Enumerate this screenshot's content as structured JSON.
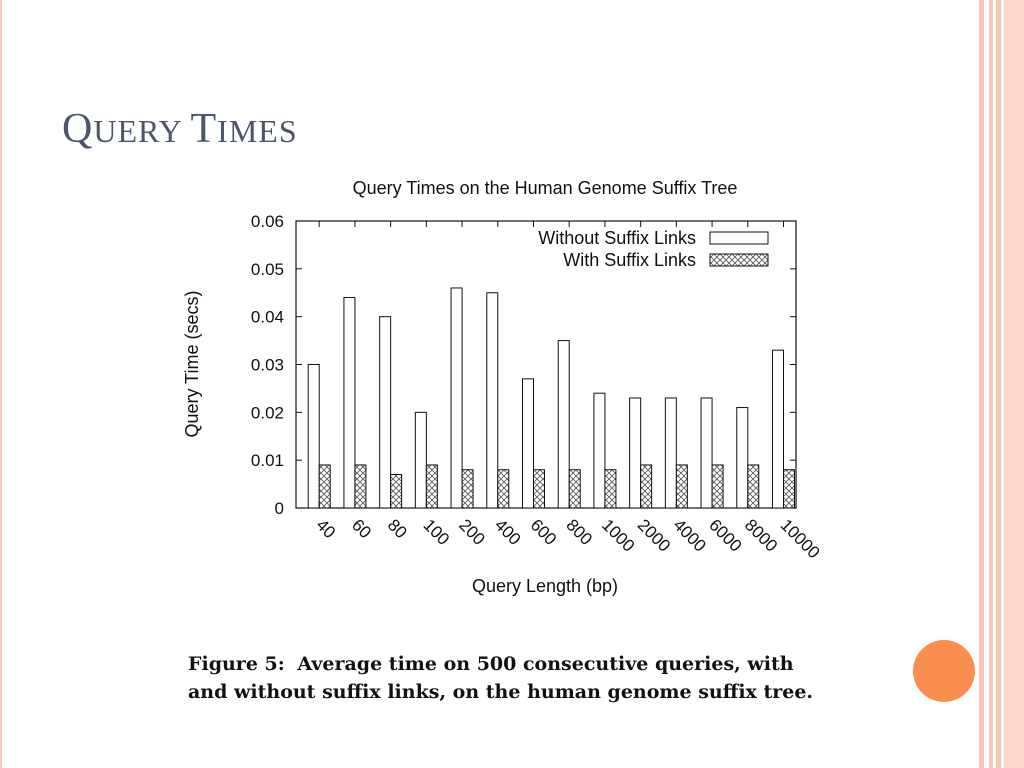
{
  "slide": {
    "title": "Query Times",
    "caption_label": "Figure 5:",
    "caption_text": "Average time on 500 consecutive queries, with and without suffix links, on the human genome suffix tree."
  },
  "colors": {
    "title": "#4b5669",
    "accent_circle": "#f98e4f",
    "stripe": "#f6c7b6"
  },
  "chart_data": {
    "type": "bar",
    "title": "Query Times on the Human Genome Suffix Tree",
    "xlabel": "Query Length (bp)",
    "ylabel": "Query Time (secs)",
    "categories": [
      "40",
      "60",
      "80",
      "100",
      "200",
      "400",
      "600",
      "800",
      "1000",
      "2000",
      "4000",
      "6000",
      "8000",
      "10000"
    ],
    "series": [
      {
        "name": "Without Suffix Links",
        "values": [
          0.03,
          0.044,
          0.04,
          0.02,
          0.046,
          0.045,
          0.027,
          0.035,
          0.024,
          0.023,
          0.023,
          0.023,
          0.021,
          0.033
        ]
      },
      {
        "name": "With Suffix Links",
        "values": [
          0.009,
          0.009,
          0.007,
          0.009,
          0.008,
          0.008,
          0.008,
          0.008,
          0.008,
          0.009,
          0.009,
          0.009,
          0.009,
          0.008
        ]
      }
    ],
    "ylim": [
      0,
      0.06
    ],
    "yticks": [
      "0",
      "0.01",
      "0.02",
      "0.03",
      "0.04",
      "0.05",
      "0.06"
    ],
    "legend": "top-right",
    "grid": false
  }
}
